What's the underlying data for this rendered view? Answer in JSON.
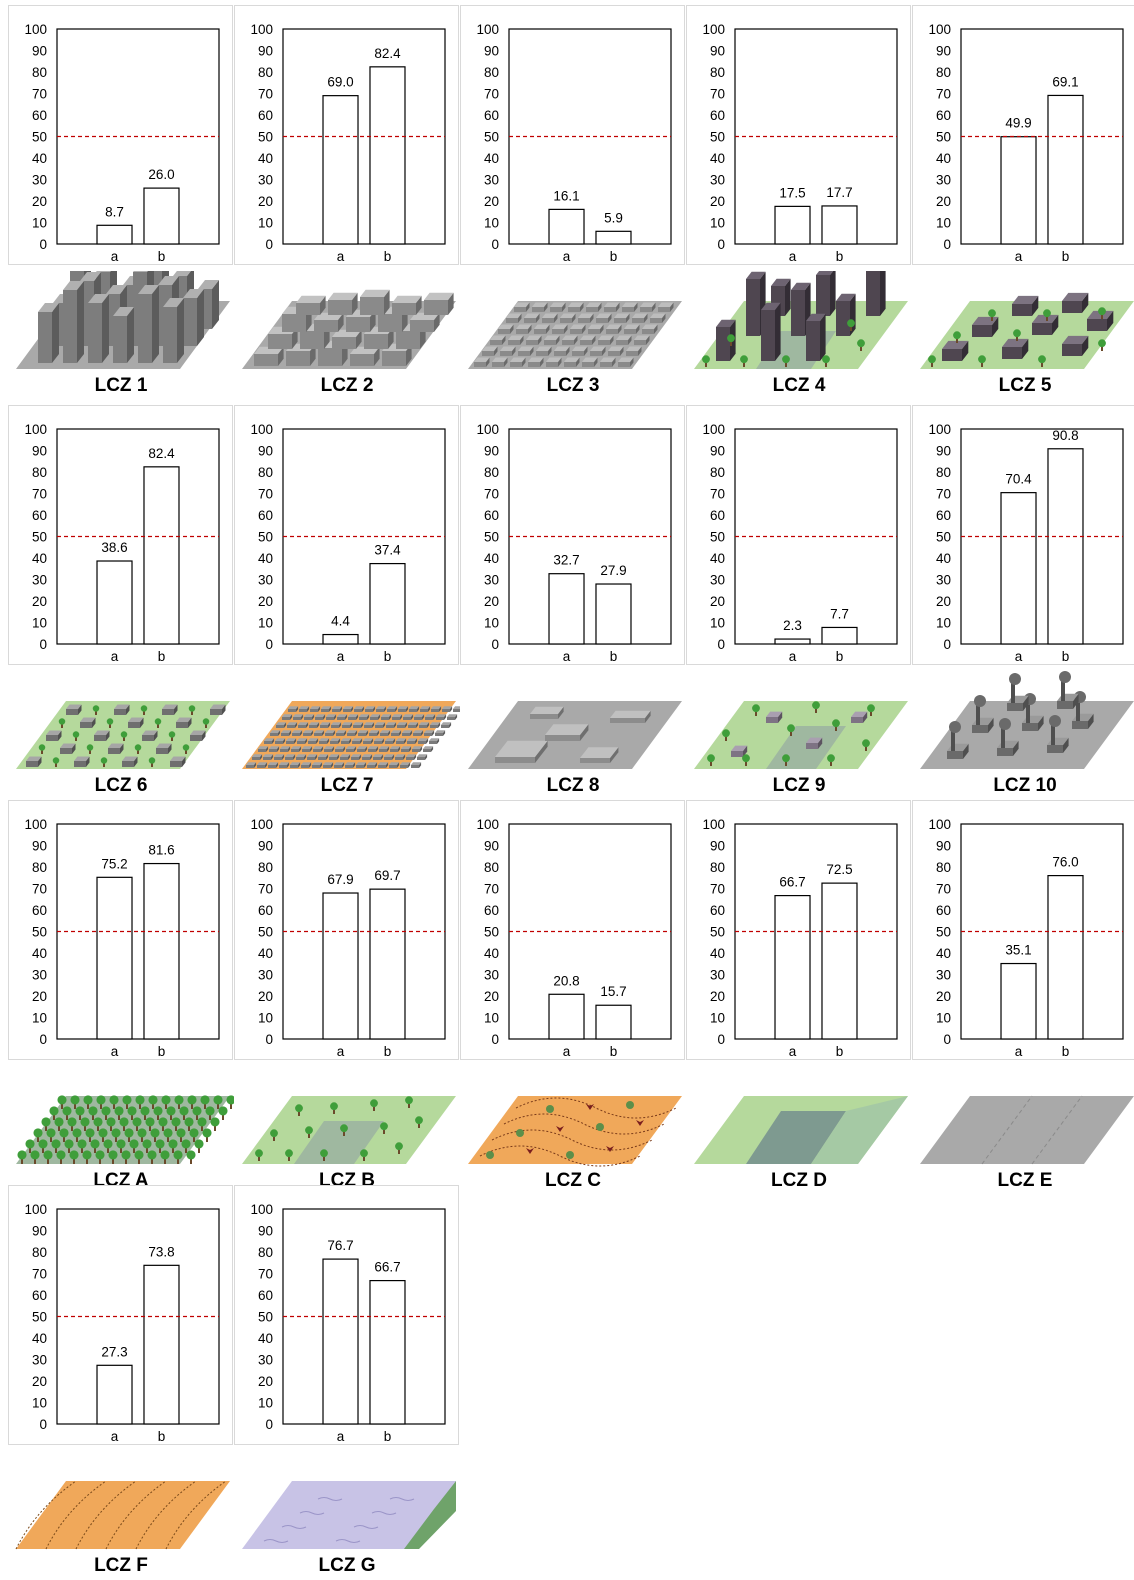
{
  "chart_data": [
    {
      "type": "bar",
      "label": "LCZ 1",
      "categories": [
        "a",
        "b"
      ],
      "values": [
        8.7,
        26.0
      ],
      "value_labels": [
        "8.7",
        "26.0"
      ],
      "ylim": [
        0,
        100
      ],
      "yticks": [
        0,
        10,
        20,
        30,
        40,
        50,
        60,
        70,
        80,
        90,
        100
      ],
      "reference_line": 50
    },
    {
      "type": "bar",
      "label": "LCZ 2",
      "categories": [
        "a",
        "b"
      ],
      "values": [
        69.0,
        82.4
      ],
      "value_labels": [
        "69.0",
        "82.4"
      ],
      "ylim": [
        0,
        100
      ],
      "yticks": [
        0,
        10,
        20,
        30,
        40,
        50,
        60,
        70,
        80,
        90,
        100
      ],
      "reference_line": 50
    },
    {
      "type": "bar",
      "label": "LCZ 3",
      "categories": [
        "a",
        "b"
      ],
      "values": [
        16.1,
        5.9
      ],
      "value_labels": [
        "16.1",
        "5.9"
      ],
      "ylim": [
        0,
        100
      ],
      "yticks": [
        0,
        10,
        20,
        30,
        40,
        50,
        60,
        70,
        80,
        90,
        100
      ],
      "reference_line": 50
    },
    {
      "type": "bar",
      "label": "LCZ 4",
      "categories": [
        "a",
        "b"
      ],
      "values": [
        17.5,
        17.7
      ],
      "value_labels": [
        "17.5",
        "17.7"
      ],
      "ylim": [
        0,
        100
      ],
      "yticks": [
        0,
        10,
        20,
        30,
        40,
        50,
        60,
        70,
        80,
        90,
        100
      ],
      "reference_line": 50
    },
    {
      "type": "bar",
      "label": "LCZ 5",
      "categories": [
        "a",
        "b"
      ],
      "values": [
        49.9,
        69.1
      ],
      "value_labels": [
        "49.9",
        "69.1"
      ],
      "ylim": [
        0,
        100
      ],
      "yticks": [
        0,
        10,
        20,
        30,
        40,
        50,
        60,
        70,
        80,
        90,
        100
      ],
      "reference_line": 50
    },
    {
      "type": "bar",
      "label": "LCZ 6",
      "categories": [
        "a",
        "b"
      ],
      "values": [
        38.6,
        82.4
      ],
      "value_labels": [
        "38.6",
        "82.4"
      ],
      "ylim": [
        0,
        100
      ],
      "yticks": [
        0,
        10,
        20,
        30,
        40,
        50,
        60,
        70,
        80,
        90,
        100
      ],
      "reference_line": 50
    },
    {
      "type": "bar",
      "label": "LCZ 7",
      "categories": [
        "a",
        "b"
      ],
      "values": [
        4.4,
        37.4
      ],
      "value_labels": [
        "4.4",
        "37.4"
      ],
      "ylim": [
        0,
        100
      ],
      "yticks": [
        0,
        10,
        20,
        30,
        40,
        50,
        60,
        70,
        80,
        90,
        100
      ],
      "reference_line": 50
    },
    {
      "type": "bar",
      "label": "LCZ 8",
      "categories": [
        "a",
        "b"
      ],
      "values": [
        32.7,
        27.9
      ],
      "value_labels": [
        "32.7",
        "27.9"
      ],
      "ylim": [
        0,
        100
      ],
      "yticks": [
        0,
        10,
        20,
        30,
        40,
        50,
        60,
        70,
        80,
        90,
        100
      ],
      "reference_line": 50
    },
    {
      "type": "bar",
      "label": "LCZ 9",
      "categories": [
        "a",
        "b"
      ],
      "values": [
        2.3,
        7.7
      ],
      "value_labels": [
        "2.3",
        "7.7"
      ],
      "ylim": [
        0,
        100
      ],
      "yticks": [
        0,
        10,
        20,
        30,
        40,
        50,
        60,
        70,
        80,
        90,
        100
      ],
      "reference_line": 50
    },
    {
      "type": "bar",
      "label": "LCZ 10",
      "categories": [
        "a",
        "b"
      ],
      "values": [
        70.4,
        90.8
      ],
      "value_labels": [
        "70.4",
        "90.8"
      ],
      "ylim": [
        0,
        100
      ],
      "yticks": [
        0,
        10,
        20,
        30,
        40,
        50,
        60,
        70,
        80,
        90,
        100
      ],
      "reference_line": 50
    },
    {
      "type": "bar",
      "label": "LCZ A",
      "categories": [
        "a",
        "b"
      ],
      "values": [
        75.2,
        81.6
      ],
      "value_labels": [
        "75.2",
        "81.6"
      ],
      "ylim": [
        0,
        100
      ],
      "yticks": [
        0,
        10,
        20,
        30,
        40,
        50,
        60,
        70,
        80,
        90,
        100
      ],
      "reference_line": 50
    },
    {
      "type": "bar",
      "label": "LCZ B",
      "categories": [
        "a",
        "b"
      ],
      "values": [
        67.9,
        69.7
      ],
      "value_labels": [
        "67.9",
        "69.7"
      ],
      "ylim": [
        0,
        100
      ],
      "yticks": [
        0,
        10,
        20,
        30,
        40,
        50,
        60,
        70,
        80,
        90,
        100
      ],
      "reference_line": 50
    },
    {
      "type": "bar",
      "label": "LCZ C",
      "categories": [
        "a",
        "b"
      ],
      "values": [
        20.8,
        15.7
      ],
      "value_labels": [
        "20.8",
        "15.7"
      ],
      "ylim": [
        0,
        100
      ],
      "yticks": [
        0,
        10,
        20,
        30,
        40,
        50,
        60,
        70,
        80,
        90,
        100
      ],
      "reference_line": 50
    },
    {
      "type": "bar",
      "label": "LCZ D",
      "categories": [
        "a",
        "b"
      ],
      "values": [
        66.7,
        72.5
      ],
      "value_labels": [
        "66.7",
        "72.5"
      ],
      "ylim": [
        0,
        100
      ],
      "yticks": [
        0,
        10,
        20,
        30,
        40,
        50,
        60,
        70,
        80,
        90,
        100
      ],
      "reference_line": 50
    },
    {
      "type": "bar",
      "label": "LCZ E",
      "categories": [
        "a",
        "b"
      ],
      "values": [
        35.1,
        76.0
      ],
      "value_labels": [
        "35.1",
        "76.0"
      ],
      "ylim": [
        0,
        100
      ],
      "yticks": [
        0,
        10,
        20,
        30,
        40,
        50,
        60,
        70,
        80,
        90,
        100
      ],
      "reference_line": 50
    },
    {
      "type": "bar",
      "label": "LCZ F",
      "categories": [
        "a",
        "b"
      ],
      "values": [
        27.3,
        73.8
      ],
      "value_labels": [
        "27.3",
        "73.8"
      ],
      "ylim": [
        0,
        100
      ],
      "yticks": [
        0,
        10,
        20,
        30,
        40,
        50,
        60,
        70,
        80,
        90,
        100
      ],
      "reference_line": 50
    },
    {
      "type": "bar",
      "label": "LCZ G",
      "categories": [
        "a",
        "b"
      ],
      "values": [
        76.7,
        66.7
      ],
      "value_labels": [
        "76.7",
        "66.7"
      ],
      "ylim": [
        0,
        100
      ],
      "yticks": [
        0,
        10,
        20,
        30,
        40,
        50,
        60,
        70,
        80,
        90,
        100
      ],
      "reference_line": 50
    }
  ],
  "illustrations": [
    {
      "zone": "LCZ 1",
      "kind": "highrise-compact"
    },
    {
      "zone": "LCZ 2",
      "kind": "midrise-compact"
    },
    {
      "zone": "LCZ 3",
      "kind": "lowrise-compact"
    },
    {
      "zone": "LCZ 4",
      "kind": "highrise-open"
    },
    {
      "zone": "LCZ 5",
      "kind": "midrise-open"
    },
    {
      "zone": "LCZ 6",
      "kind": "lowrise-open"
    },
    {
      "zone": "LCZ 7",
      "kind": "lightweight-lowrise"
    },
    {
      "zone": "LCZ 8",
      "kind": "large-lowrise"
    },
    {
      "zone": "LCZ 9",
      "kind": "sparsely-built"
    },
    {
      "zone": "LCZ 10",
      "kind": "heavy-industry"
    },
    {
      "zone": "LCZ A",
      "kind": "dense-trees"
    },
    {
      "zone": "LCZ B",
      "kind": "scattered-trees"
    },
    {
      "zone": "LCZ C",
      "kind": "bush-scrub"
    },
    {
      "zone": "LCZ D",
      "kind": "low-plants"
    },
    {
      "zone": "LCZ E",
      "kind": "bare-rock-paved"
    },
    {
      "zone": "LCZ F",
      "kind": "bare-soil-sand"
    },
    {
      "zone": "LCZ G",
      "kind": "water"
    }
  ],
  "colors": {
    "bar_fill": "#ffffff",
    "bar_stroke": "#000000",
    "reference_line": "#c00000",
    "frame": "#000000",
    "cell_border": "#d9d9d9",
    "concrete": "#9a9a9a",
    "grass": "#b5d99c",
    "soil": "#f0a85a",
    "water": "#c8c3e6",
    "tree": "#3f9e3a",
    "dark_building": "#4f4650"
  }
}
